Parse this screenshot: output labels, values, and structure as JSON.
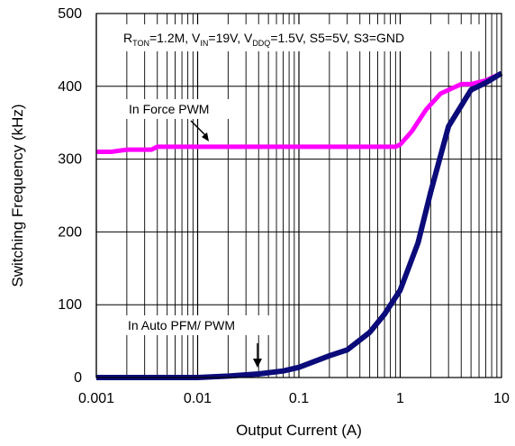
{
  "chart_data": {
    "type": "line",
    "xlabel": "Output Current (A)",
    "ylabel": "Switching Frequency (kHz)",
    "xscale": "log",
    "xlim": [
      0.001,
      10
    ],
    "ylim": [
      0,
      500
    ],
    "grid": true,
    "x_tick_labels": [
      "0.001",
      "0.01",
      "0.1",
      "1",
      "10"
    ],
    "x_tick_values": [
      0.001,
      0.01,
      0.1,
      1,
      10
    ],
    "y_tick_labels": [
      "0",
      "100",
      "200",
      "300",
      "400",
      "500"
    ],
    "y_tick_values": [
      0,
      100,
      200,
      300,
      400,
      500
    ],
    "conditions": {
      "r": "R",
      "r_sub": "TON",
      "r_val": "=1.2M, V",
      "vin_sub": "IN",
      "vin_val": "=19V, V",
      "vddq_sub": "DDQ",
      "vddq_val": "=1.5V, S5=5V, S3=GND"
    },
    "annotations": [
      {
        "text": "In Force PWM",
        "series": 0
      },
      {
        "text": "In Auto PFM/ PWM",
        "series": 1
      }
    ],
    "series": [
      {
        "name": "In Force PWM",
        "color": "#ff00ff",
        "x": [
          0.001,
          0.0014,
          0.002,
          0.0035,
          0.004,
          0.006,
          0.01,
          0.03,
          0.1,
          0.3,
          0.6,
          0.9,
          1.0,
          1.3,
          1.8,
          2.5,
          4.0,
          5.0,
          7.0,
          10.0
        ],
        "y": [
          310,
          310,
          313,
          313,
          317,
          317,
          317,
          317,
          317,
          317,
          317,
          317,
          320,
          338,
          368,
          390,
          403,
          403,
          408,
          418
        ]
      },
      {
        "name": "In Auto PFM/ PWM",
        "color": "#0b0b7a",
        "x": [
          0.001,
          0.002,
          0.01,
          0.02,
          0.04,
          0.07,
          0.1,
          0.2,
          0.3,
          0.5,
          0.7,
          1.0,
          1.5,
          2.0,
          3.0,
          5.0,
          7.0,
          10.0
        ],
        "y": [
          0,
          0,
          0,
          2,
          5,
          9,
          14,
          30,
          38,
          62,
          87,
          120,
          185,
          255,
          345,
          395,
          405,
          418
        ]
      }
    ]
  }
}
